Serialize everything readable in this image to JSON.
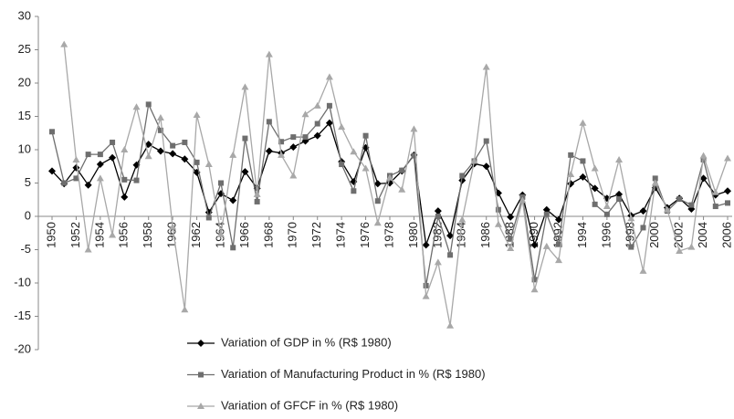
{
  "chart_data": {
    "type": "line",
    "x": [
      1950,
      1951,
      1952,
      1953,
      1954,
      1955,
      1956,
      1957,
      1958,
      1959,
      1960,
      1961,
      1962,
      1963,
      1964,
      1965,
      1966,
      1967,
      1968,
      1969,
      1970,
      1971,
      1972,
      1973,
      1974,
      1975,
      1976,
      1977,
      1978,
      1979,
      1980,
      1981,
      1982,
      1983,
      1984,
      1985,
      1986,
      1987,
      1988,
      1989,
      1990,
      1991,
      1992,
      1993,
      1994,
      1995,
      1996,
      1997,
      1998,
      1999,
      2000,
      2001,
      2002,
      2003,
      2004,
      2005,
      2006
    ],
    "series": [
      {
        "name": "Variation of GDP in % (R$ 1980)",
        "color": "#000000",
        "marker": "diamond",
        "values": [
          6.8,
          4.9,
          7.3,
          4.7,
          7.8,
          8.8,
          2.9,
          7.7,
          10.8,
          9.8,
          9.4,
          8.6,
          6.6,
          0.6,
          3.4,
          2.4,
          6.7,
          4.2,
          9.8,
          9.5,
          10.4,
          11.3,
          12.1,
          14.0,
          8.2,
          5.2,
          10.3,
          4.9,
          5.0,
          6.8,
          9.2,
          -4.3,
          0.8,
          -2.9,
          5.4,
          7.9,
          7.5,
          3.5,
          -0.1,
          3.2,
          -4.3,
          1.0,
          -0.5,
          4.9,
          5.9,
          4.2,
          2.7,
          3.3,
          0.1,
          0.8,
          4.3,
          1.3,
          2.7,
          1.1,
          5.7,
          3.2,
          3.8
        ]
      },
      {
        "name": "Variation of Manufacturing Product in % (R$ 1980)",
        "color": "#6e6e6e",
        "marker": "square",
        "values": [
          12.7,
          5.0,
          5.7,
          9.3,
          9.3,
          11.1,
          5.5,
          5.4,
          16.8,
          12.9,
          10.6,
          11.1,
          8.1,
          -0.2,
          5.0,
          -4.7,
          11.7,
          2.2,
          14.2,
          11.2,
          11.9,
          11.9,
          13.9,
          16.6,
          7.8,
          3.8,
          12.1,
          2.3,
          6.1,
          6.9,
          9.1,
          -10.4,
          0.0,
          -5.8,
          6.1,
          8.3,
          11.3,
          1.0,
          -3.4,
          2.9,
          -9.5,
          0.3,
          -4.2,
          9.2,
          8.3,
          1.8,
          0.3,
          2.6,
          -4.6,
          -1.7,
          5.7,
          0.8,
          2.6,
          1.7,
          8.5,
          1.5,
          2.0
        ]
      },
      {
        "name": "Variation of GFCF in % (R$ 1980)",
        "color": "#a8a8a8",
        "marker": "triangle",
        "values": [
          null,
          25.8,
          8.5,
          -5.0,
          5.7,
          -2.8,
          10.0,
          16.4,
          9.0,
          14.8,
          -1.6,
          -14.0,
          15.2,
          7.8,
          -2.7,
          9.2,
          19.4,
          3.3,
          24.3,
          9.2,
          6.1,
          15.3,
          16.6,
          20.9,
          13.4,
          9.7,
          7.2,
          -1.0,
          5.8,
          4.0,
          13.1,
          -12.0,
          -6.9,
          -16.4,
          -0.5,
          8.3,
          22.4,
          -1.2,
          -4.8,
          2.4,
          -11.0,
          -4.5,
          -6.6,
          6.3,
          14.0,
          7.2,
          1.5,
          8.5,
          -0.3,
          -8.2,
          5.0,
          1.0,
          -5.2,
          -4.6,
          9.1,
          3.6,
          8.7
        ]
      }
    ],
    "xlim": [
      1950,
      2006
    ],
    "xticks": [
      1950,
      1952,
      1954,
      1956,
      1958,
      1960,
      1962,
      1964,
      1966,
      1968,
      1970,
      1972,
      1974,
      1976,
      1978,
      1980,
      1982,
      1984,
      1986,
      1988,
      1990,
      1992,
      1994,
      1996,
      1998,
      2000,
      2002,
      2004,
      2006
    ],
    "ylim": [
      -20,
      30
    ],
    "yticks": [
      -20,
      -15,
      -10,
      -5,
      0,
      5,
      10,
      15,
      20,
      25,
      30
    ],
    "grid": false,
    "legend_position": "bottom"
  }
}
